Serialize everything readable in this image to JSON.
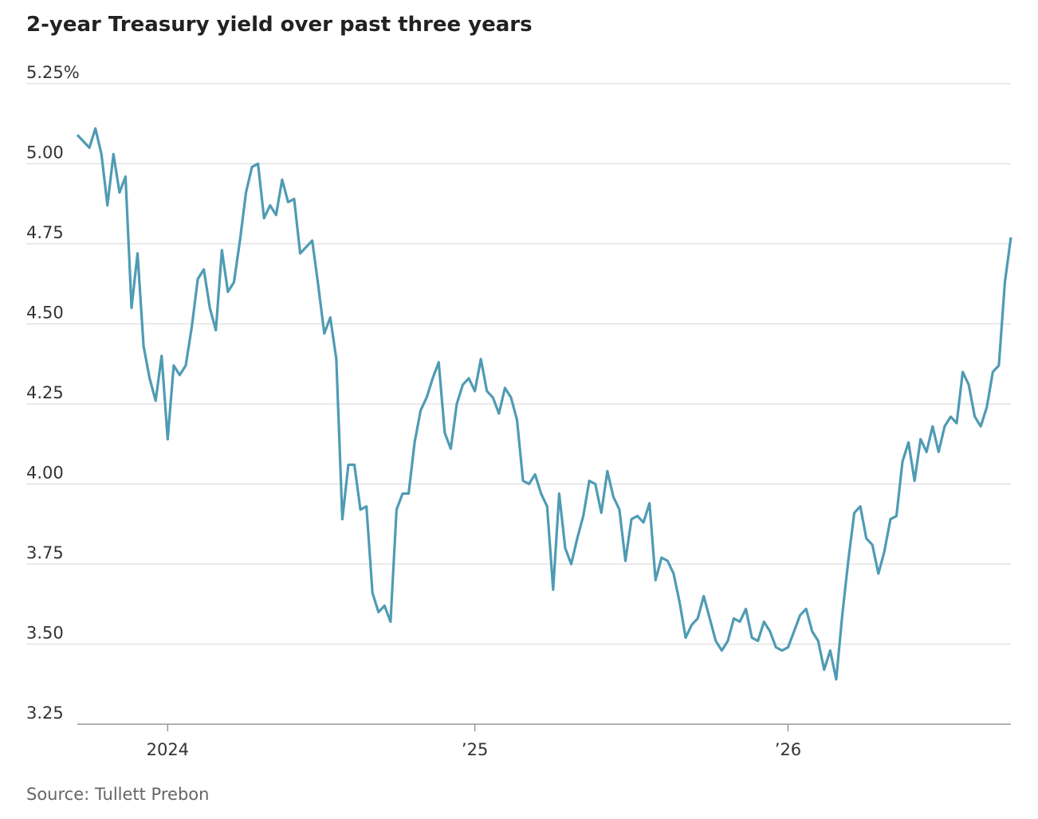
{
  "chart_data": {
    "type": "line",
    "title": "2-year Treasury yield over past three years",
    "source": "Source: Tullett Prebon",
    "categories": [
      null,
      null,
      null,
      null,
      null,
      null,
      null,
      null,
      null,
      null,
      null,
      null,
      null,
      null,
      null,
      "2024",
      null,
      null,
      null,
      null,
      null,
      null,
      null,
      null,
      null,
      null,
      null,
      null,
      null,
      null,
      null,
      null,
      null,
      null,
      null,
      null,
      null,
      null,
      null,
      null,
      null,
      null,
      null,
      null,
      null,
      null,
      null,
      null,
      null,
      null,
      null,
      null,
      null,
      null,
      null,
      null,
      null,
      null,
      null,
      null,
      null,
      null,
      null,
      null,
      null,
      null,
      "’25",
      null,
      null,
      null,
      null,
      null,
      null,
      null,
      null,
      null,
      null,
      null,
      null,
      null,
      null,
      null,
      null,
      null,
      null,
      null,
      null,
      null,
      null,
      null,
      null,
      null,
      null,
      null,
      null,
      null,
      null,
      null,
      null,
      null,
      null,
      null,
      null,
      null,
      null,
      null,
      null,
      null,
      null,
      null,
      null,
      null,
      null,
      null,
      null,
      null,
      null,
      null,
      "’26",
      null,
      null,
      null,
      null,
      null,
      null,
      null,
      null,
      null,
      null,
      null,
      null,
      null,
      null,
      null,
      null,
      null,
      null,
      null,
      null,
      null,
      null,
      null,
      null,
      null,
      null,
      null,
      null,
      null,
      null,
      null,
      null,
      null,
      null,
      null,
      null,
      null
    ],
    "series": [
      {
        "name": "2-year Treasury yield",
        "color": "#4f9bb4",
        "values": [
          5.09,
          5.07,
          5.05,
          5.11,
          5.03,
          4.87,
          5.03,
          4.91,
          4.96,
          4.55,
          4.72,
          4.43,
          4.33,
          4.26,
          4.4,
          4.14,
          4.37,
          4.34,
          4.37,
          4.49,
          4.64,
          4.67,
          4.55,
          4.48,
          4.73,
          4.6,
          4.63,
          4.76,
          4.91,
          4.99,
          5.0,
          4.83,
          4.87,
          4.84,
          4.95,
          4.88,
          4.89,
          4.72,
          4.74,
          4.76,
          4.62,
          4.47,
          4.52,
          4.39,
          3.89,
          4.06,
          4.06,
          3.92,
          3.93,
          3.66,
          3.6,
          3.62,
          3.57,
          3.92,
          3.97,
          3.97,
          4.13,
          4.23,
          4.27,
          4.33,
          4.38,
          4.16,
          4.11,
          4.25,
          4.31,
          4.33,
          4.29,
          4.39,
          4.29,
          4.27,
          4.22,
          4.3,
          4.27,
          4.2,
          4.01,
          4.0,
          4.03,
          3.97,
          3.93,
          3.67,
          3.97,
          3.8,
          3.75,
          3.83,
          3.9,
          4.01,
          4.0,
          3.91,
          4.04,
          3.96,
          3.92,
          3.76,
          3.89,
          3.9,
          3.88,
          3.94,
          3.7,
          3.77,
          3.76,
          3.72,
          3.63,
          3.52,
          3.56,
          3.58,
          3.65,
          3.58,
          3.51,
          3.48,
          3.51,
          3.58,
          3.57,
          3.61,
          3.52,
          3.51,
          3.57,
          3.54,
          3.49,
          3.48,
          3.49,
          3.54,
          3.59,
          3.61,
          3.54,
          3.51,
          3.42,
          3.48,
          3.39,
          3.59,
          3.76,
          3.91,
          3.93,
          3.83,
          3.81,
          3.72,
          3.79,
          3.89,
          3.9,
          4.07,
          4.13,
          4.01,
          4.14,
          4.1,
          4.18,
          4.1,
          4.18,
          4.21,
          4.19,
          4.35,
          4.31,
          4.21,
          4.18,
          4.24,
          4.35,
          4.37,
          4.63,
          4.77
        ]
      }
    ],
    "ylim": [
      3.25,
      5.25
    ],
    "yticks": [
      {
        "value": 5.25,
        "label": "5.25%"
      },
      {
        "value": 5.0,
        "label": "5.00"
      },
      4.75,
      {
        "value": 4.5,
        "label": "4.50"
      },
      4.25,
      {
        "value": 4.0,
        "label": "4.00"
      },
      3.75,
      {
        "value": 3.5,
        "label": "3.50"
      },
      3.25
    ],
    "grid": true
  }
}
